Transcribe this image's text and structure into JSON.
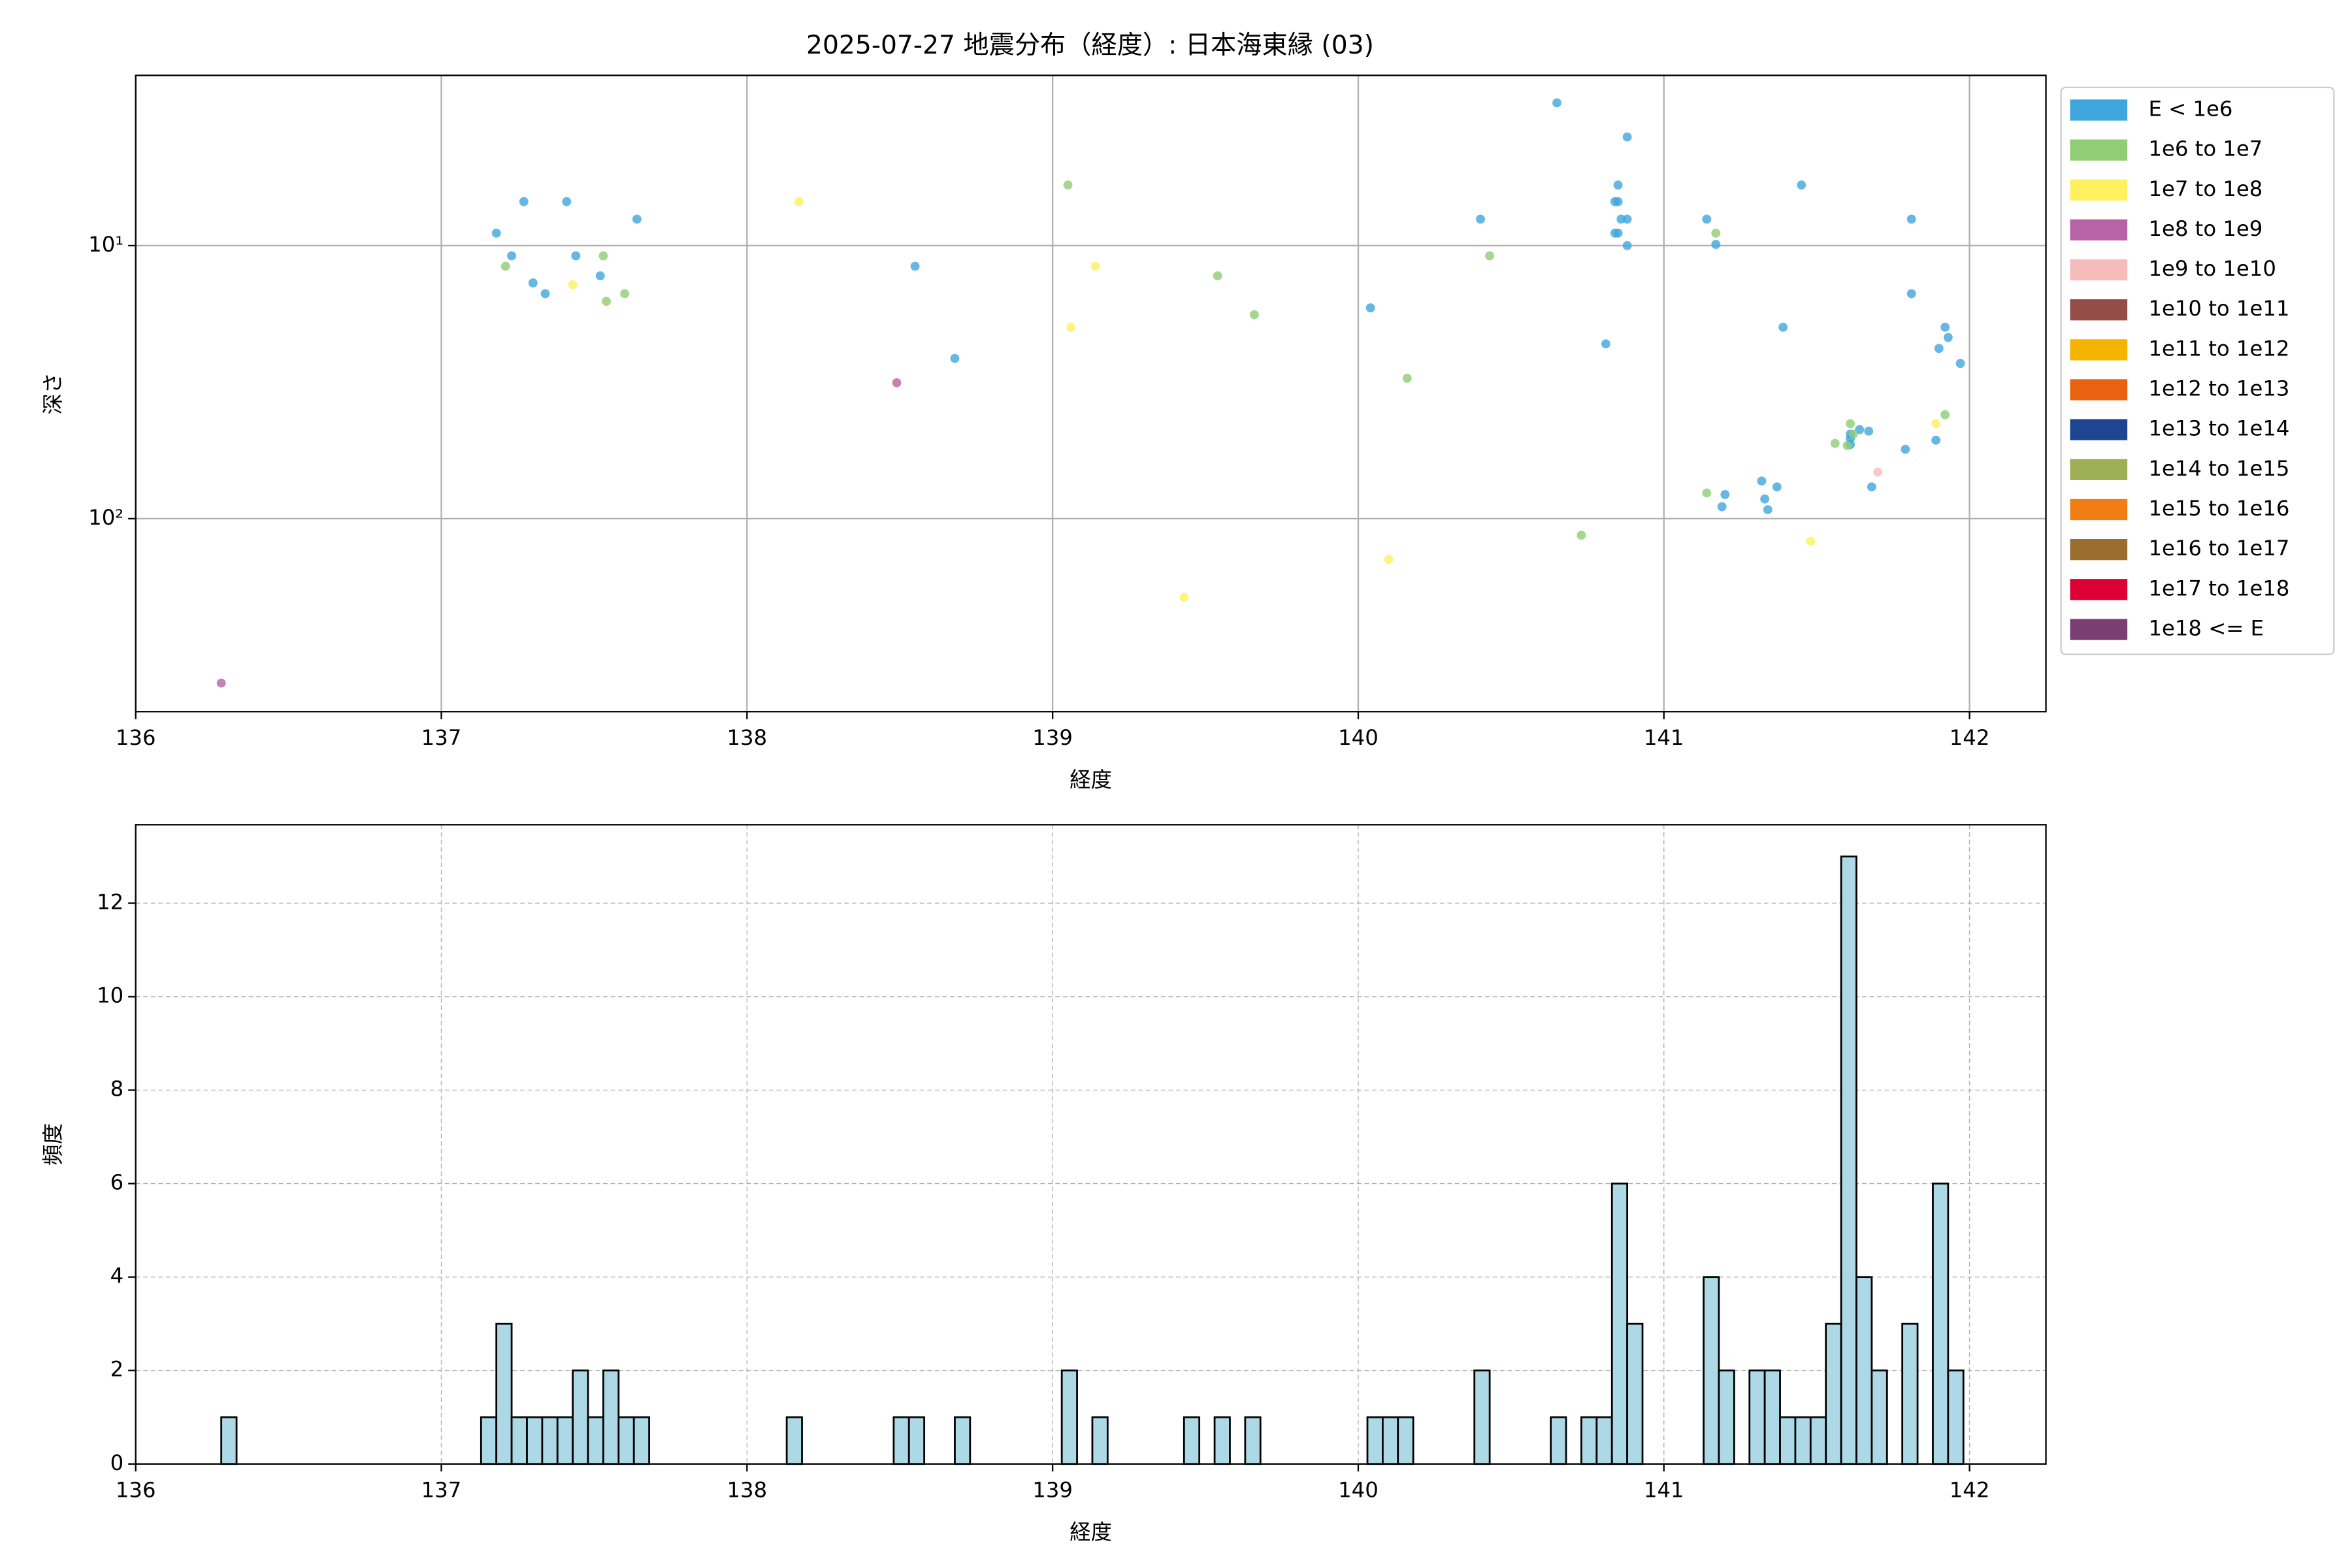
{
  "chart_data": [
    {
      "type": "scatter",
      "title": "2025-07-27 地震分布（経度）: 日本海東縁 (03)",
      "x_label": "経度",
      "y_label": "深さ",
      "xlim": [
        136.0,
        142.25
      ],
      "xticks": [
        136,
        137,
        138,
        139,
        140,
        141,
        142
      ],
      "ylim": [
        2.38,
        509
      ],
      "yscale": "log",
      "y_inverted": true,
      "yticks": [
        {
          "value": 10,
          "label": "10¹"
        },
        {
          "value": 100,
          "label": "10²"
        }
      ],
      "grid": true,
      "legend": "outside upper right",
      "series": [
        {
          "name": "E < 1e6",
          "color": "#3fa5dd",
          "x": [
            137.18,
            137.27,
            137.41,
            137.23,
            137.44,
            137.3,
            137.34,
            137.52,
            137.64,
            138.55,
            138.68,
            140.04,
            140.4,
            140.65,
            140.81,
            140.88,
            140.85,
            140.84,
            140.85,
            140.86,
            140.88,
            140.84,
            140.85,
            140.88,
            141.14,
            141.17,
            141.45,
            141.39,
            141.81,
            141.81,
            141.92,
            141.93,
            141.9,
            141.97,
            141.61,
            141.64,
            141.67,
            141.61,
            141.61,
            141.79,
            141.89,
            141.68,
            141.32,
            141.37,
            141.2,
            141.19,
            141.33,
            141.34
          ],
          "values": [
            9.0,
            6.9,
            6.9,
            10.9,
            10.9,
            13.7,
            15.0,
            12.9,
            8.0,
            11.9,
            25.9,
            16.9,
            8.0,
            3.0,
            22.9,
            4.0,
            6.0,
            6.9,
            6.9,
            8.0,
            8.0,
            9.0,
            9.0,
            10.0,
            8.0,
            9.9,
            6.0,
            19.9,
            8.0,
            15.0,
            19.9,
            21.7,
            23.8,
            27.0,
            49,
            47.2,
            47.8,
            51,
            53.5,
            55.7,
            51.6,
            76.5,
            72.8,
            76.5,
            81.6,
            90.4,
            84.7,
            92.7
          ]
        },
        {
          "name": "1e6 to 1e7",
          "color": "#90cd74",
          "x": [
            137.21,
            137.53,
            137.54,
            137.6,
            139.05,
            139.54,
            139.66,
            140.43,
            140.16,
            141.17,
            141.14,
            140.73,
            141.61,
            141.6,
            141.56,
            141.62,
            141.92
          ],
          "values": [
            11.9,
            10.9,
            16.0,
            15.0,
            6.0,
            12.9,
            17.9,
            10.9,
            30.6,
            9.0,
            80.5,
            115,
            44.9,
            54,
            53,
            49,
            41.6
          ]
        },
        {
          "name": "1e7 to 1e8",
          "color": "#fff060",
          "x": [
            138.17,
            137.43,
            139.06,
            139.14,
            139.43,
            140.1,
            141.48,
            141.89
          ],
          "values": [
            6.9,
            13.9,
            19.9,
            11.9,
            194,
            141,
            121,
            44.9
          ]
        },
        {
          "name": "1e8 to 1e9",
          "color": "#b863a5",
          "x": [
            138.49,
            136.28
          ],
          "values": [
            31.8,
            400
          ]
        },
        {
          "name": "1e9 to 1e10",
          "color": "#f5bcbc",
          "x": [
            141.7
          ],
          "values": [
            67.5
          ]
        },
        {
          "name": "1e10 to 1e11",
          "color": "#954d4a",
          "x": [],
          "values": []
        },
        {
          "name": "1e11 to 1e12",
          "color": "#f5b400",
          "x": [],
          "values": []
        },
        {
          "name": "1e12 to 1e13",
          "color": "#e8620f",
          "x": [],
          "values": []
        },
        {
          "name": "1e13 to 1e14",
          "color": "#1e4690",
          "x": [],
          "values": []
        },
        {
          "name": "1e14 to 1e15",
          "color": "#9eae52",
          "x": [],
          "values": []
        },
        {
          "name": "1e15 to 1e16",
          "color": "#f07e14",
          "x": [],
          "values": []
        },
        {
          "name": "1e16 to 1e17",
          "color": "#9a6e2e",
          "x": [],
          "values": []
        },
        {
          "name": "1e17 to 1e18",
          "color": "#dc0034",
          "x": [],
          "values": []
        },
        {
          "name": "1e18 <= E",
          "color": "#7a3e72",
          "x": [],
          "values": []
        }
      ]
    },
    {
      "type": "histogram",
      "x_label": "経度",
      "y_label": "頻度",
      "xlim": [
        136.0,
        142.25
      ],
      "xticks": [
        136,
        137,
        138,
        139,
        140,
        141,
        142
      ],
      "ylim": [
        0,
        13.68
      ],
      "yticks": [
        0,
        2,
        4,
        6,
        8,
        10,
        12
      ],
      "grid": true,
      "grid_style": "dashed",
      "color": "#add8e6",
      "edgecolor": "#000000",
      "bins": [
        136.28,
        136.33,
        136.38,
        136.43,
        136.48,
        136.53,
        136.58,
        136.63,
        136.68,
        136.73,
        136.78,
        136.83,
        136.88,
        136.93,
        136.98,
        137.03,
        137.08,
        137.13,
        137.18,
        137.23,
        137.28,
        137.33,
        137.38,
        137.43,
        137.48,
        137.53,
        137.58,
        137.63,
        137.68,
        137.73,
        137.78,
        137.83,
        137.88,
        137.93,
        137.98,
        138.03,
        138.08,
        138.13,
        138.18,
        138.23,
        138.28,
        138.33,
        138.38,
        138.43,
        138.48,
        138.53,
        138.58,
        138.63,
        138.68,
        138.73,
        138.78,
        138.83,
        138.88,
        138.93,
        138.98,
        139.03,
        139.08,
        139.13,
        139.18,
        139.23,
        139.28,
        139.33,
        139.38,
        139.43,
        139.48,
        139.53,
        139.58,
        139.63,
        139.68,
        139.73,
        139.78,
        139.83,
        139.88,
        139.93,
        139.98,
        140.03,
        140.08,
        140.13,
        140.18,
        140.23,
        140.28,
        140.33,
        140.38,
        140.43,
        140.48,
        140.53,
        140.58,
        140.63,
        140.68,
        140.73,
        140.78,
        140.83,
        140.88,
        140.93,
        140.98,
        141.03,
        141.08,
        141.13,
        141.18,
        141.23,
        141.28,
        141.33,
        141.38,
        141.43,
        141.48,
        141.53,
        141.58,
        141.63,
        141.68,
        141.73,
        141.78,
        141.83,
        141.88,
        141.93,
        141.98
      ],
      "values": [
        1,
        0,
        0,
        0,
        0,
        0,
        0,
        0,
        0,
        0,
        0,
        0,
        0,
        0,
        0,
        0,
        0,
        1,
        3,
        1,
        1,
        1,
        1,
        2,
        1,
        2,
        1,
        1,
        0,
        0,
        0,
        0,
        0,
        0,
        0,
        0,
        0,
        1,
        0,
        0,
        0,
        0,
        0,
        0,
        1,
        1,
        0,
        0,
        1,
        0,
        0,
        0,
        0,
        0,
        0,
        2,
        0,
        1,
        0,
        0,
        0,
        0,
        0,
        1,
        0,
        1,
        0,
        1,
        0,
        0,
        0,
        0,
        0,
        0,
        0,
        1,
        1,
        1,
        0,
        0,
        0,
        0,
        2,
        0,
        0,
        0,
        0,
        1,
        0,
        1,
        1,
        6,
        3,
        0,
        0,
        0,
        0,
        4,
        2,
        0,
        2,
        2,
        1,
        1,
        1,
        3,
        13,
        4,
        2,
        0,
        3,
        0,
        6,
        2
      ]
    }
  ]
}
